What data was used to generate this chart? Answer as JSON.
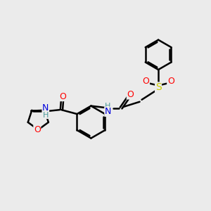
{
  "background_color": "#ebebeb",
  "bond_color": "#000000",
  "bond_width": 1.8,
  "figsize": [
    3.0,
    3.0
  ],
  "dpi": 100,
  "atom_colors": {
    "O": "#ff0000",
    "N": "#0000dd",
    "S": "#cccc00",
    "H": "#4a9999"
  },
  "font_size": 9
}
